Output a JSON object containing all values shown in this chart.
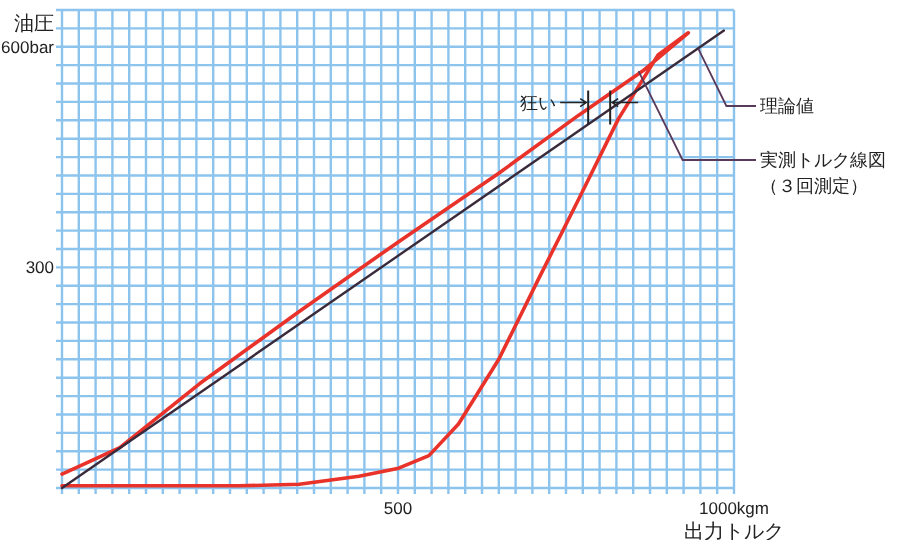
{
  "chart_data": {
    "type": "line",
    "ylabel": "油圧",
    "xlabel": "出力トルク",
    "xlim": [
      0,
      1000
    ],
    "ylim": [
      0,
      650
    ],
    "xticks": [
      {
        "value": 0,
        "label": null
      },
      {
        "value": 25,
        "label": null
      },
      {
        "value": 50,
        "label": null
      },
      {
        "value": 75,
        "label": null
      },
      {
        "value": 100,
        "label": null
      },
      {
        "value": 125,
        "label": null
      },
      {
        "value": 150,
        "label": null
      },
      {
        "value": 175,
        "label": null
      },
      {
        "value": 200,
        "label": null
      },
      {
        "value": 225,
        "label": null
      },
      {
        "value": 250,
        "label": null
      },
      {
        "value": 275,
        "label": null
      },
      {
        "value": 300,
        "label": null
      },
      {
        "value": 325,
        "label": null
      },
      {
        "value": 350,
        "label": null
      },
      {
        "value": 375,
        "label": null
      },
      {
        "value": 400,
        "label": null
      },
      {
        "value": 425,
        "label": null
      },
      {
        "value": 450,
        "label": null
      },
      {
        "value": 475,
        "label": null
      },
      500,
      {
        "value": 525,
        "label": null
      },
      {
        "value": 550,
        "label": null
      },
      {
        "value": 575,
        "label": null
      },
      {
        "value": 600,
        "label": null
      },
      {
        "value": 625,
        "label": null
      },
      {
        "value": 650,
        "label": null
      },
      {
        "value": 675,
        "label": null
      },
      {
        "value": 700,
        "label": null
      },
      {
        "value": 725,
        "label": null
      },
      {
        "value": 750,
        "label": null
      },
      {
        "value": 775,
        "label": null
      },
      {
        "value": 800,
        "label": null
      },
      {
        "value": 825,
        "label": null
      },
      {
        "value": 850,
        "label": null
      },
      {
        "value": 875,
        "label": null
      },
      {
        "value": 900,
        "label": null
      },
      {
        "value": 925,
        "label": null
      },
      {
        "value": 950,
        "label": null
      },
      {
        "value": 975,
        "label": null
      },
      {
        "value": 1000,
        "label": "1000kgm"
      }
    ],
    "yticks": [
      {
        "value": 0,
        "label": null
      },
      {
        "value": 25,
        "label": null
      },
      {
        "value": 50,
        "label": null
      },
      {
        "value": 75,
        "label": null
      },
      {
        "value": 100,
        "label": null
      },
      {
        "value": 125,
        "label": null
      },
      {
        "value": 150,
        "label": null
      },
      {
        "value": 175,
        "label": null
      },
      {
        "value": 200,
        "label": null
      },
      {
        "value": 225,
        "label": null
      },
      {
        "value": 250,
        "label": null
      },
      {
        "value": 275,
        "label": null
      },
      300,
      {
        "value": 325,
        "label": null
      },
      {
        "value": 350,
        "label": null
      },
      {
        "value": 375,
        "label": null
      },
      {
        "value": 400,
        "label": null
      },
      {
        "value": 425,
        "label": null
      },
      {
        "value": 450,
        "label": null
      },
      {
        "value": 475,
        "label": null
      },
      {
        "value": 500,
        "label": null
      },
      {
        "value": 525,
        "label": null
      },
      {
        "value": 550,
        "label": null
      },
      {
        "value": 575,
        "label": null
      },
      {
        "value": 600,
        "label": "600bar"
      },
      {
        "value": 625,
        "label": null
      },
      {
        "value": 650,
        "label": null
      }
    ],
    "grid": true,
    "marker": "none",
    "line_style": "solid",
    "series": [
      {
        "color": "#e8322a",
        "x": [
          0,
          264,
          353,
          442,
          501,
          546,
          590,
          650,
          709,
          769,
          828,
          887,
          932,
          864,
          769,
          650,
          501,
          353,
          205,
          86,
          27,
          0
        ],
        "values": [
          3,
          3,
          5,
          16,
          27,
          44,
          87,
          175,
          284,
          393,
          502,
          589,
          619,
          567,
          507,
          428,
          335,
          240,
          142,
          55,
          30,
          19
        ]
      },
      {
        "color": "#3a2a3a",
        "x": [
          0,
          985
        ],
        "values": [
          0,
          622
        ]
      }
    ],
    "annotations": [
      {
        "text": "理論値",
        "x": 947,
        "y": 597
      },
      {
        "text": "実測トルク線図（３回測定）",
        "x": 858,
        "y": 567
      },
      {
        "text": "狂い",
        "x": 783,
        "y": 516
      }
    ]
  }
}
